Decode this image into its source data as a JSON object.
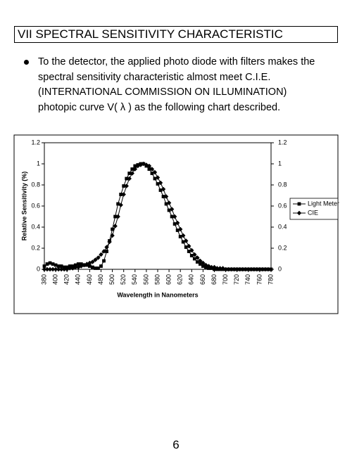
{
  "header": {
    "title": "VII SPECTRAL SENSITIVITY CHARACTERISTIC"
  },
  "bullet": {
    "lines": [
      "To the detector, the applied photo diode with filters makes the",
      "spectral sensitivity characteristic almost meet C.I.E.",
      "(INTERNATIONAL COMMISSION ON ILLUMINATION)",
      "photopic curve V( λ ) as the following chart described."
    ]
  },
  "chart_data": {
    "type": "line",
    "xlabel": "Wavelength in Nanometers",
    "ylabel": "Relative Sensitivity (%)",
    "x": [
      380,
      385,
      390,
      395,
      400,
      405,
      410,
      415,
      420,
      425,
      430,
      435,
      440,
      445,
      450,
      455,
      460,
      465,
      470,
      475,
      480,
      485,
      490,
      495,
      500,
      505,
      510,
      515,
      520,
      525,
      530,
      535,
      540,
      545,
      550,
      555,
      560,
      565,
      570,
      575,
      580,
      585,
      590,
      595,
      600,
      605,
      610,
      615,
      620,
      625,
      630,
      635,
      640,
      645,
      650,
      655,
      660,
      665,
      670,
      675,
      680,
      685,
      690,
      695,
      700,
      705,
      710,
      715,
      720,
      725,
      730,
      735,
      740,
      745,
      750,
      755,
      760,
      765,
      770,
      775,
      780
    ],
    "series": [
      {
        "name": "Light Meter",
        "color": "#000000",
        "marker": "square",
        "values": [
          0.03,
          0.05,
          0.06,
          0.05,
          0.04,
          0.03,
          0.03,
          0.02,
          0.02,
          0.03,
          0.03,
          0.04,
          0.05,
          0.05,
          0.04,
          0.04,
          0.03,
          0.02,
          0.01,
          0.01,
          0.03,
          0.08,
          0.17,
          0.27,
          0.38,
          0.5,
          0.62,
          0.71,
          0.79,
          0.86,
          0.91,
          0.95,
          0.98,
          0.99,
          1.0,
          1.0,
          0.98,
          0.95,
          0.91,
          0.86,
          0.81,
          0.75,
          0.69,
          0.62,
          0.56,
          0.5,
          0.43,
          0.37,
          0.31,
          0.26,
          0.21,
          0.17,
          0.13,
          0.1,
          0.07,
          0.05,
          0.03,
          0.02,
          0.01,
          0.01,
          0,
          0,
          0,
          0,
          0,
          0,
          0,
          0,
          0,
          0,
          0,
          0,
          0,
          0,
          0,
          0,
          0,
          0,
          0,
          0,
          0
        ]
      },
      {
        "name": "CIE",
        "color": "#000000",
        "marker": "diamond",
        "values": [
          0,
          0,
          0,
          0,
          0,
          0,
          0,
          0,
          0,
          0.01,
          0.01,
          0.02,
          0.02,
          0.03,
          0.04,
          0.05,
          0.06,
          0.07,
          0.09,
          0.11,
          0.14,
          0.17,
          0.21,
          0.26,
          0.32,
          0.41,
          0.5,
          0.61,
          0.71,
          0.79,
          0.86,
          0.91,
          0.95,
          0.98,
          0.99,
          1,
          0.99,
          0.98,
          0.95,
          0.92,
          0.87,
          0.82,
          0.76,
          0.69,
          0.63,
          0.57,
          0.5,
          0.44,
          0.38,
          0.32,
          0.27,
          0.22,
          0.18,
          0.14,
          0.11,
          0.08,
          0.06,
          0.04,
          0.03,
          0.02,
          0.02,
          0.01,
          0.01,
          0.01,
          0,
          0,
          0,
          0,
          0,
          0,
          0,
          0,
          0,
          0,
          0,
          0,
          0,
          0,
          0,
          0,
          0
        ]
      }
    ],
    "xlim": [
      380,
      780
    ],
    "xticks": [
      380,
      400,
      420,
      440,
      460,
      480,
      500,
      520,
      540,
      560,
      580,
      600,
      620,
      640,
      660,
      680,
      700,
      720,
      740,
      760,
      780
    ],
    "ylim": [
      0,
      1.2
    ],
    "yticks": [
      0,
      0.2,
      0.4,
      0.6,
      0.8,
      1,
      1.2
    ],
    "y2lim": [
      0,
      1.2
    ],
    "y2ticks": [
      0,
      0.2,
      0.4,
      0.6,
      0.8,
      1,
      1.2
    ],
    "grid": false,
    "legend": "right"
  },
  "footer": {
    "page_number": "6"
  }
}
